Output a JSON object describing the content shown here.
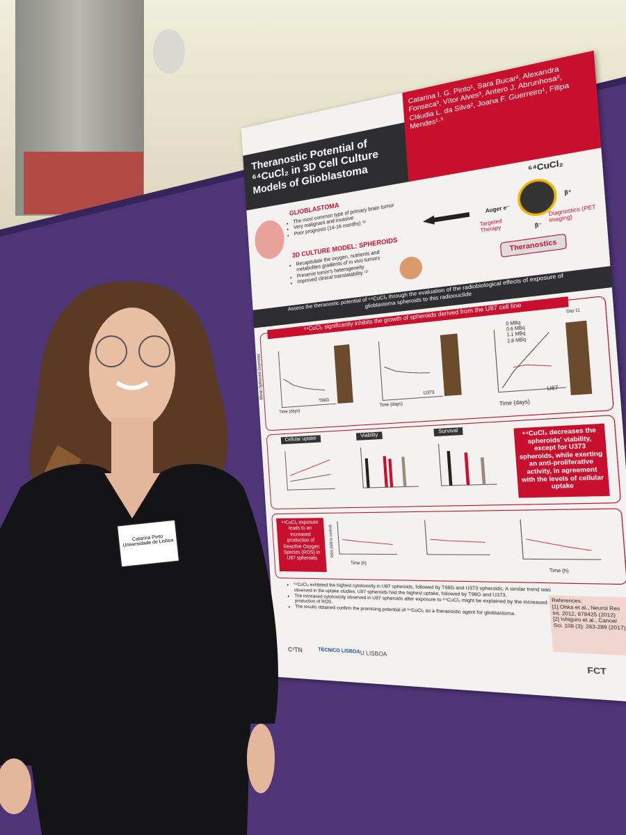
{
  "badge": {
    "name": "Catarina Pinto",
    "institution": "Universidade de Lisboa"
  },
  "poster": {
    "title": "Theranostic Potential of ⁶⁴CuCl₂ in 3D Cell Culture Models of Glioblastoma",
    "authors": "Catarina I. G. Pinto¹, Sara Bucar², Alexandra Fonseca³, Vítor Alves³, Antero J. Abrunhosa³, Cláudia L. da Silva², Joana F. Guerreiro¹, Filipa Mendes¹·⁵",
    "intro": {
      "glioblastoma": {
        "heading": "GLIOBLASTOMA",
        "bullets": [
          "The most common type of primary brain tumor",
          "Very malignant and invasive",
          "Poor prognosis (14-16 months) ⁽¹⁾"
        ]
      },
      "spheroids": {
        "heading": "3D CULTURE MODEL: SPHEROIDS",
        "bullets": [
          "Recapitulate the oxygen, nutrients and metabolites gradients of in vivo tumors",
          "Preserve tumor's heterogeneity",
          "Improved clinical translatability ⁽²⁾"
        ]
      },
      "diagram": {
        "isotope": "⁶⁴CuCl₂",
        "auger": "Auger e⁻",
        "beta_minus": "β⁻",
        "beta_plus": "β⁺",
        "therapy": "Targeted Therapy",
        "diagnostics": "Diagnostics (PET imaging)",
        "theranostics": "Theranostics"
      }
    },
    "objective": "Assess the theranostic potential of ⁶⁴CuCl₂ through the evaluation of the radiobiological effects of exposure of glioblastoma spheroids to this radionuclide",
    "growth": {
      "banner": "⁶⁴CuCl₂ significantly inhibits the growth of spheroids derived from the U87 cell line",
      "x_label": "Time (days)",
      "y_label": "Mean Spheroid Diameter",
      "cell_lines": [
        "T98G",
        "U373",
        "U87"
      ],
      "legend": [
        "0 MBq",
        "0.6 MBq",
        "1.1 MBq",
        "2.8 MBq"
      ],
      "day_label": "Day 11"
    },
    "panels": [
      "Cellular uptake",
      "Viability",
      "Survival"
    ],
    "viability_box": "⁶⁴CuCl₂ decreases the spheroids' viability, except for U373 spheroids, while exerting an anti-proliferative activity, in agreement with the levels of cellular uptake",
    "ros_box": "⁶⁴CuCl₂ exposure leads to an increased production of Reactive Oxygen Species (ROS) in U87 spheroids",
    "ros_axis": {
      "x_label": "Time (h)",
      "y_label": "ROS (fold to control)"
    },
    "conclusions": [
      "⁶⁴CuCl₂ exhibited the highest cytotoxicity in U87 spheroids, followed by T98G and U373 spheroids. A similar trend was observed in the uptake studies: U87 spheroids had the highest uptake, followed by T98G and U373.",
      "The increased cytotoxicity observed in U87 spheroids after exposure to ⁶⁴CuCl₂ might be explained by the increased production of ROS.",
      "The results obtained confirm the promising potential of ⁶⁴CuCl₂ as a theranostic agent for glioblastoma."
    ],
    "references": {
      "heading": "References:",
      "items": [
        "[1] Ohka et al., Neurol Res Int. 2012, 878425 (2012)",
        "[2] Ishiguro et al., Cancer Sci. 108 (3): 283-289 (2017)"
      ]
    },
    "logos": [
      "C²TN",
      "TÉCNICO LISBOA",
      "U LISBOA",
      "FCT"
    ]
  }
}
